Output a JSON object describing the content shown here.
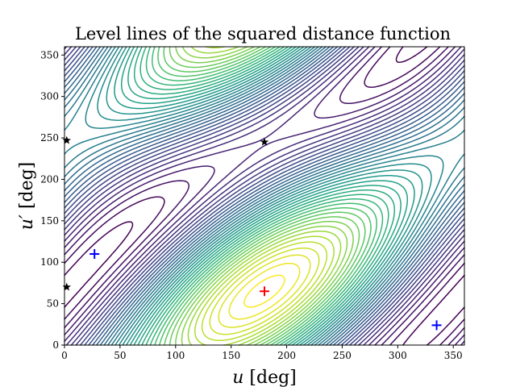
{
  "chart_data": {
    "type": "contour",
    "title": "Level lines of the squared distance function",
    "xlabel": "u [deg]",
    "ylabel": "u′ [deg]",
    "xlabel_parts": {
      "var": "u",
      "unit": " [deg]"
    },
    "ylabel_parts": {
      "var": "u′",
      "unit": " [deg]"
    },
    "xlim": [
      0,
      360
    ],
    "ylim": [
      0,
      360
    ],
    "xticks": [
      0,
      50,
      100,
      150,
      200,
      250,
      300,
      350
    ],
    "yticks": [
      0,
      50,
      100,
      150,
      200,
      250,
      300,
      350
    ],
    "grid": false,
    "colormap": "viridis",
    "contour_levels": 40,
    "minimum": {
      "x": 180,
      "y": 65,
      "marker": "+",
      "color": "#ff0000"
    },
    "crosses": [
      {
        "x": 27,
        "y": 110,
        "marker": "+",
        "color": "#0000ff"
      },
      {
        "x": 335,
        "y": 24,
        "marker": "+",
        "color": "#0000ff"
      }
    ],
    "saddle_points": [
      {
        "x": 2,
        "y": 247,
        "marker": "star",
        "color": "#000000"
      },
      {
        "x": 180,
        "y": 245,
        "marker": "star",
        "color": "#000000"
      },
      {
        "x": 2,
        "y": 70,
        "marker": "star",
        "color": "#000000"
      }
    ]
  }
}
